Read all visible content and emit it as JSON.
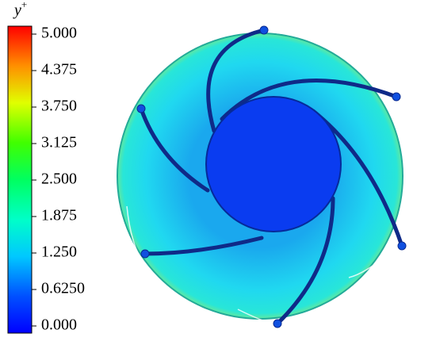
{
  "chart_data": {
    "type": "contour",
    "colorbar": {
      "title": "y",
      "title_superscript": "+",
      "lim": [
        0,
        5
      ],
      "ticks": [
        {
          "value": 5,
          "label": "5.000"
        },
        {
          "value": 4.375,
          "label": "4.375"
        },
        {
          "value": 3.75,
          "label": "3.750"
        },
        {
          "value": 3.125,
          "label": "3.125"
        },
        {
          "value": 2.5,
          "label": "2.500"
        },
        {
          "value": 1.875,
          "label": "1.875"
        },
        {
          "value": 1.25,
          "label": "1.250"
        },
        {
          "value": 0.625,
          "label": "0.6250"
        },
        {
          "value": 0,
          "label": "0.000"
        }
      ]
    }
  }
}
